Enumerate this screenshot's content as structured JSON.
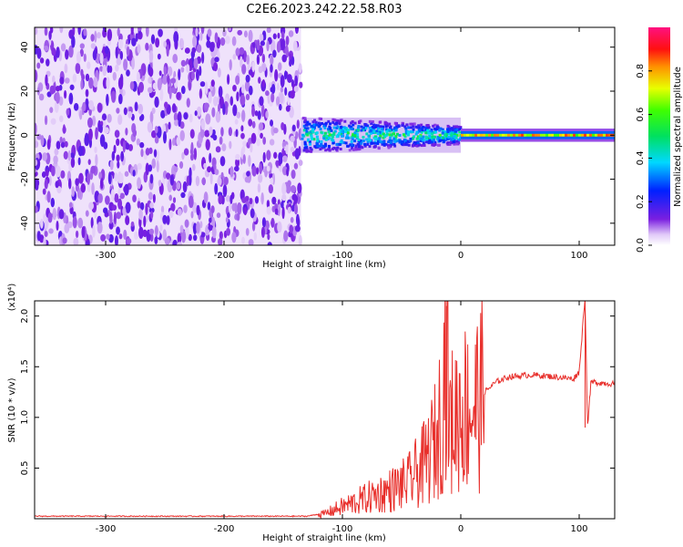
{
  "title": "C2E6.2023.242.22.58.R03",
  "colors": {
    "signal": "#e8302c",
    "noise": "#7a1fe0",
    "frame": "#000000"
  },
  "chart_data": [
    {
      "type": "heatmap",
      "xlabel": "Height of straight line (km)",
      "ylabel": "Frequency (Hz)",
      "xlim": [
        -360,
        130
      ],
      "ylim": [
        -50,
        49
      ],
      "x_ticks": [
        -300,
        -200,
        -100,
        0,
        100
      ],
      "y_ticks": [
        40,
        20,
        0,
        -20,
        -40
      ],
      "colorbar": {
        "label": "Normalized spectral amplitude",
        "range": [
          0,
          1
        ],
        "ticks": [
          "0.0",
          "0.2",
          "0.4",
          "0.6",
          "0.8"
        ],
        "colormap": "rainbow (violet-blue-cyan-green-yellow-red-magenta)"
      },
      "regions": [
        {
          "x_range": [
            -360,
            -135
          ],
          "description": "broadband noise",
          "amplitude": 0.05
        },
        {
          "x_range": [
            -135,
            0
          ],
          "freq_spread_hz": 8,
          "amplitude": 0.4
        },
        {
          "x_range": [
            0,
            130
          ],
          "freq_spread_hz": 3,
          "amplitude": 0.8
        }
      ]
    },
    {
      "type": "line",
      "xlabel": "Height of straight line (km)",
      "ylabel": "SNR (10 * v/v)",
      "y_multiplier": "(x10⁴)",
      "xlim": [
        -360,
        130
      ],
      "ylim": [
        0,
        2.15
      ],
      "x_ticks": [
        -300,
        -200,
        -100,
        0,
        100
      ],
      "y_ticks": [
        "0.5",
        "1.0",
        "1.5",
        "2.0"
      ],
      "series": [
        {
          "points": [
            [
              -360,
              0.02
            ],
            [
              -300,
              0.02
            ],
            [
              -200,
              0.02
            ],
            [
              -130,
              0.02
            ],
            [
              -115,
              0.05
            ],
            [
              -100,
              0.12
            ],
            [
              -80,
              0.2
            ],
            [
              -60,
              0.28
            ],
            [
              -45,
              0.35
            ],
            [
              -30,
              0.55
            ],
            [
              -20,
              0.8
            ],
            [
              -15,
              1.2
            ],
            [
              -12,
              2.1
            ],
            [
              -10,
              0.9
            ],
            [
              0,
              1.1
            ],
            [
              10,
              1.1
            ],
            [
              20,
              1.25
            ],
            [
              30,
              1.35
            ],
            [
              40,
              1.4
            ],
            [
              60,
              1.42
            ],
            [
              80,
              1.4
            ],
            [
              95,
              1.38
            ],
            [
              100,
              1.45
            ],
            [
              105,
              2.2
            ],
            [
              107,
              0.9
            ],
            [
              110,
              1.35
            ],
            [
              130,
              1.33
            ]
          ]
        }
      ]
    }
  ]
}
